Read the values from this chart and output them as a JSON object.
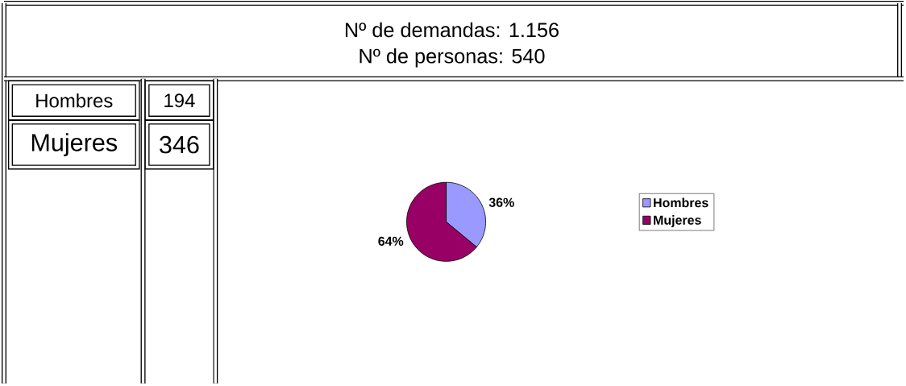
{
  "chart_data": {
    "type": "pie",
    "title": "Nº de demandas: 1.156",
    "subtitle": "Nº de personas:  540",
    "categories": [
      "Hombres",
      "Mujeres"
    ],
    "values": [
      36,
      64
    ],
    "colors": [
      "#9999ff",
      "#990066"
    ],
    "value_labels": [
      "36%",
      "64%"
    ],
    "legend": "right",
    "annotations": [
      "Hombres",
      "194",
      "Mujeres",
      "346"
    ]
  }
}
